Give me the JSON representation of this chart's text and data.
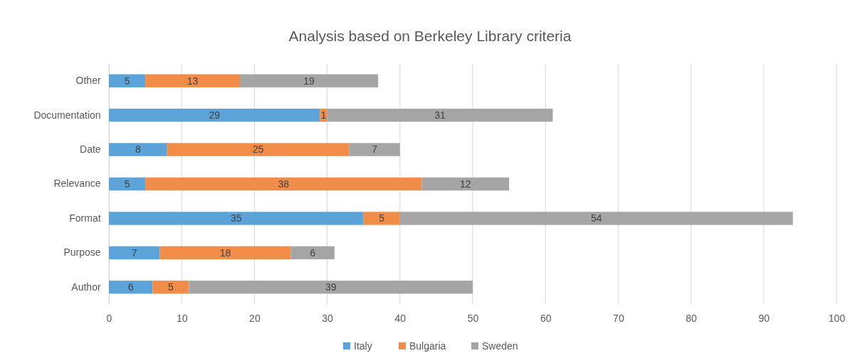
{
  "chart_data": {
    "type": "bar",
    "orientation": "horizontal",
    "stacked": true,
    "title": "Analysis based on Berkeley Library criteria",
    "categories": [
      "Other",
      "Documentation",
      "Date",
      "Relevance",
      "Format",
      "Purpose",
      "Author"
    ],
    "series": [
      {
        "name": "Italy",
        "color": "#5ba3d9",
        "values": [
          5,
          29,
          8,
          5,
          35,
          7,
          6
        ]
      },
      {
        "name": "Bulgaria",
        "color": "#f28c49",
        "values": [
          13,
          1,
          25,
          38,
          5,
          18,
          5
        ]
      },
      {
        "name": "Sweden",
        "color": "#a5a5a5",
        "values": [
          19,
          31,
          7,
          12,
          54,
          6,
          39
        ]
      }
    ],
    "xlim": [
      0,
      100
    ],
    "xticks": [
      0,
      10,
      20,
      30,
      40,
      50,
      60,
      70,
      80,
      90,
      100
    ],
    "grid": "x",
    "legend": "bottom",
    "data_labels": true
  }
}
